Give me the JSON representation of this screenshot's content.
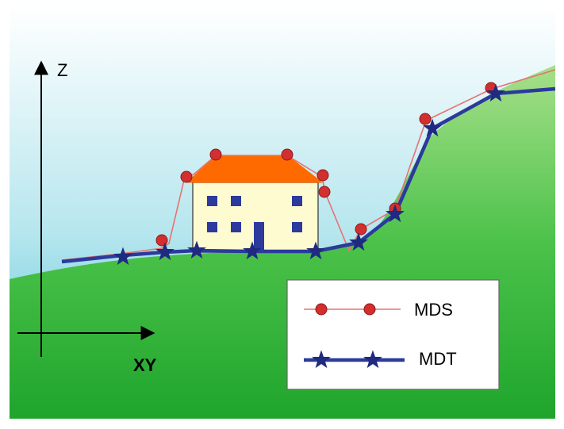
{
  "axes": {
    "vertical_label": "Z",
    "horizontal_label": "XY"
  },
  "legend": {
    "items": [
      {
        "label": "MDS",
        "marker": "circle",
        "color": "#d32f2f",
        "line_color": "#e57373"
      },
      {
        "label": "MDT",
        "marker": "star",
        "color": "#1f2a80",
        "line_color": "#2b3a9c"
      }
    ]
  },
  "colors": {
    "sky_top": "#ffffff",
    "sky_bottom": "#4fc1d6",
    "ground_light": "#a7e08a",
    "ground_dark": "#1fa52c",
    "roof": "#ff6a00",
    "wall": "#fffbd0",
    "window": "#2b3a9c"
  }
}
